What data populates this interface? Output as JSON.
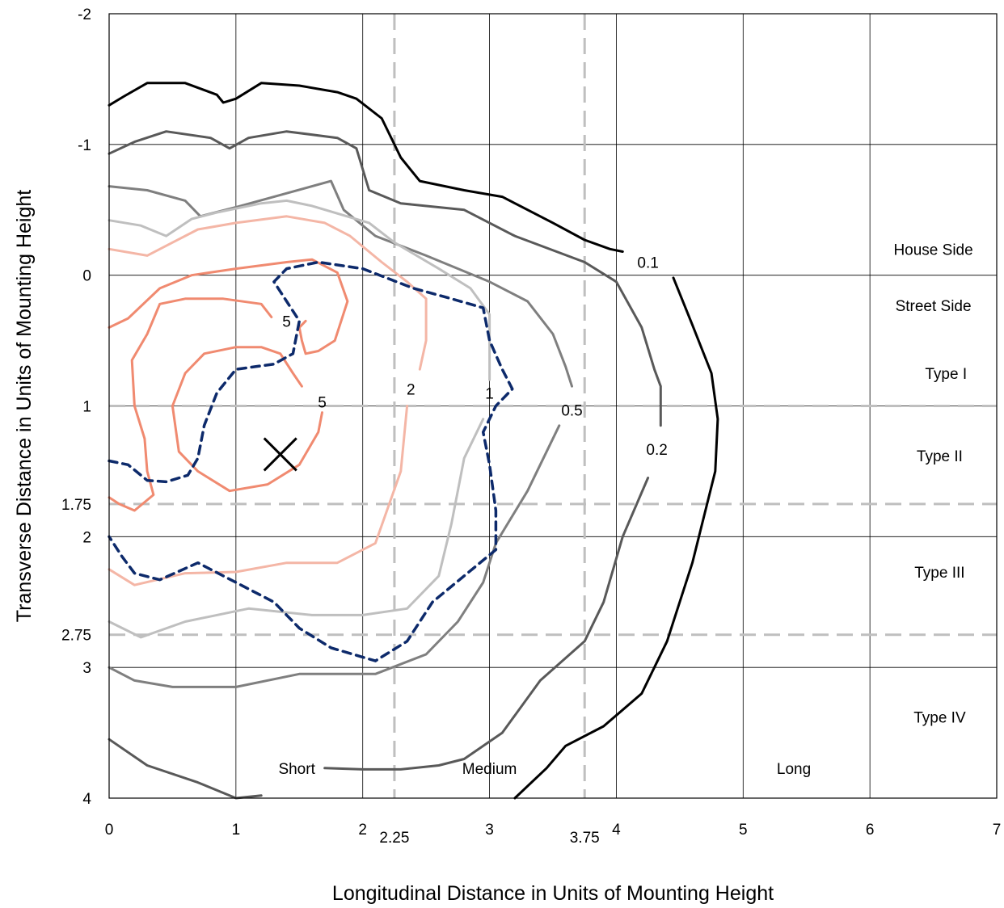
{
  "chart_data": {
    "type": "contour",
    "title": "",
    "xlabel": "Longitudinal Distance in Units of Mounting Height",
    "ylabel": "Transverse Distance in Units of Mounting Height",
    "xlim": [
      0,
      7
    ],
    "ylim": [
      -2,
      4
    ],
    "y_inverted": true,
    "x_ticks": [
      "0",
      "1",
      "2",
      "3",
      "4",
      "5",
      "6",
      "7"
    ],
    "x_extra_ticks": [
      {
        "value": 2.25,
        "label": "2.25"
      },
      {
        "value": 3.75,
        "label": "3.75"
      }
    ],
    "y_ticks": [
      {
        "value": -2,
        "label": "-2"
      },
      {
        "value": -1,
        "label": "-1"
      },
      {
        "value": 0,
        "label": "0"
      },
      {
        "value": 1,
        "label": "1"
      },
      {
        "value": 1.75,
        "label": "1.75"
      },
      {
        "value": 2,
        "label": "2"
      },
      {
        "value": 2.75,
        "label": "2.75"
      },
      {
        "value": 3,
        "label": "3"
      },
      {
        "value": 4,
        "label": "4"
      }
    ],
    "grid": true,
    "dashed_reference_lines": {
      "x": [
        2.25,
        3.75
      ],
      "y": [
        1,
        1.75,
        2.75
      ]
    },
    "region_labels": [
      {
        "text": "House Side",
        "x": 6.5,
        "y": -0.2
      },
      {
        "text": "Street Side",
        "x": 6.5,
        "y": 0.23
      },
      {
        "text": "Type I",
        "x": 6.6,
        "y": 0.75
      },
      {
        "text": "Type II",
        "x": 6.55,
        "y": 1.38
      },
      {
        "text": "Type III",
        "x": 6.55,
        "y": 2.27
      },
      {
        "text": "Type IV",
        "x": 6.55,
        "y": 3.38
      },
      {
        "text": "Short",
        "x": 1.48,
        "y": 3.77
      },
      {
        "text": "Medium",
        "x": 3.0,
        "y": 3.77
      },
      {
        "text": "Long",
        "x": 5.4,
        "y": 3.77
      }
    ],
    "max_candela_marker": {
      "symbol": "×",
      "x": 1.35,
      "y": 1.37
    },
    "series": [
      {
        "name": "0.1",
        "color": "#000000",
        "dash": false,
        "label": {
          "text": "0.1",
          "x": 4.25,
          "y": -0.1
        },
        "points": [
          [
            0,
            -1.3
          ],
          [
            0.12,
            -1.37
          ],
          [
            0.3,
            -1.47
          ],
          [
            0.6,
            -1.47
          ],
          [
            0.85,
            -1.38
          ],
          [
            0.9,
            -1.32
          ],
          [
            1.0,
            -1.35
          ],
          [
            1.2,
            -1.47
          ],
          [
            1.5,
            -1.45
          ],
          [
            1.8,
            -1.4
          ],
          [
            1.95,
            -1.35
          ],
          [
            2.15,
            -1.2
          ],
          [
            2.3,
            -0.9
          ],
          [
            2.45,
            -0.72
          ],
          [
            2.8,
            -0.65
          ],
          [
            3.1,
            -0.6
          ],
          [
            3.5,
            -0.4
          ],
          [
            3.75,
            -0.27
          ],
          [
            3.95,
            -0.2
          ],
          [
            4.05,
            -0.18
          ]
        ],
        "points2": [
          [
            4.45,
            0.02
          ],
          [
            4.6,
            0.38
          ],
          [
            4.75,
            0.75
          ],
          [
            4.8,
            1.1
          ],
          [
            4.78,
            1.5
          ],
          [
            4.6,
            2.2
          ],
          [
            4.4,
            2.8
          ],
          [
            4.2,
            3.2
          ],
          [
            3.9,
            3.45
          ],
          [
            3.6,
            3.6
          ],
          [
            3.45,
            3.77
          ],
          [
            3.2,
            4.0
          ]
        ]
      },
      {
        "name": "0.2",
        "color": "#595959",
        "dash": false,
        "label": {
          "text": "0.2",
          "x": 4.32,
          "y": 1.33
        },
        "points": [
          [
            0,
            -0.93
          ],
          [
            0.2,
            -1.02
          ],
          [
            0.45,
            -1.1
          ],
          [
            0.8,
            -1.05
          ],
          [
            0.95,
            -0.97
          ],
          [
            1.1,
            -1.05
          ],
          [
            1.4,
            -1.1
          ],
          [
            1.8,
            -1.05
          ],
          [
            1.95,
            -0.97
          ],
          [
            2.05,
            -0.65
          ],
          [
            2.3,
            -0.55
          ],
          [
            2.8,
            -0.5
          ],
          [
            3.2,
            -0.3
          ],
          [
            3.75,
            -0.1
          ],
          [
            4.0,
            0.05
          ],
          [
            4.2,
            0.4
          ],
          [
            4.3,
            0.72
          ],
          [
            4.35,
            0.85
          ],
          [
            4.35,
            1.15
          ]
        ],
        "points2": [
          [
            4.25,
            1.55
          ],
          [
            4.05,
            2.0
          ],
          [
            3.9,
            2.5
          ],
          [
            3.75,
            2.8
          ],
          [
            3.4,
            3.1
          ],
          [
            3.1,
            3.5
          ],
          [
            2.8,
            3.7
          ],
          [
            2.6,
            3.75
          ],
          [
            2.3,
            3.78
          ],
          [
            2.0,
            3.78
          ],
          [
            1.7,
            3.77
          ]
        ],
        "points3": [
          [
            0,
            3.55
          ],
          [
            0.3,
            3.75
          ],
          [
            0.7,
            3.88
          ],
          [
            1.0,
            4.0
          ],
          [
            1.2,
            3.98
          ]
        ]
      },
      {
        "name": "0.5",
        "color": "#7f7f7f",
        "dash": false,
        "label": {
          "text": "0.5",
          "x": 3.65,
          "y": 1.03
        },
        "points": [
          [
            0,
            -0.68
          ],
          [
            0.3,
            -0.65
          ],
          [
            0.6,
            -0.57
          ],
          [
            0.72,
            -0.45
          ],
          [
            1.0,
            -0.52
          ],
          [
            1.3,
            -0.6
          ],
          [
            1.75,
            -0.72
          ],
          [
            1.85,
            -0.5
          ],
          [
            2.1,
            -0.3
          ],
          [
            2.5,
            -0.15
          ],
          [
            3.0,
            0.05
          ],
          [
            3.3,
            0.2
          ],
          [
            3.5,
            0.45
          ],
          [
            3.6,
            0.7
          ],
          [
            3.65,
            0.85
          ]
        ],
        "points2": [
          [
            3.55,
            1.15
          ],
          [
            3.3,
            1.65
          ],
          [
            3.05,
            2.05
          ],
          [
            2.95,
            2.35
          ],
          [
            2.75,
            2.65
          ],
          [
            2.5,
            2.9
          ],
          [
            2.1,
            3.05
          ],
          [
            1.5,
            3.05
          ],
          [
            1.0,
            3.15
          ],
          [
            0.5,
            3.15
          ],
          [
            0.2,
            3.1
          ],
          [
            0,
            3.0
          ]
        ]
      },
      {
        "name": "1",
        "color": "#bfbfbf",
        "dash": false,
        "label": {
          "text": "1",
          "x": 3.0,
          "y": 0.9
        },
        "points": [
          [
            0,
            -0.42
          ],
          [
            0.25,
            -0.38
          ],
          [
            0.45,
            -0.3
          ],
          [
            0.65,
            -0.43
          ],
          [
            0.85,
            -0.48
          ],
          [
            1.2,
            -0.55
          ],
          [
            1.4,
            -0.57
          ],
          [
            1.6,
            -0.53
          ],
          [
            2.05,
            -0.4
          ],
          [
            2.25,
            -0.25
          ],
          [
            2.6,
            -0.05
          ],
          [
            2.85,
            0.1
          ],
          [
            3.0,
            0.3
          ],
          [
            3.0,
            0.6
          ],
          [
            3.0,
            0.8
          ]
        ],
        "points2": [
          [
            2.95,
            1.1
          ],
          [
            2.8,
            1.4
          ],
          [
            2.7,
            1.9
          ],
          [
            2.6,
            2.3
          ],
          [
            2.35,
            2.55
          ],
          [
            2.0,
            2.6
          ],
          [
            1.6,
            2.6
          ],
          [
            1.1,
            2.55
          ],
          [
            0.6,
            2.65
          ],
          [
            0.25,
            2.77
          ],
          [
            0,
            2.65
          ]
        ]
      },
      {
        "name": "2",
        "color": "#f4b6a6",
        "dash": false,
        "label": {
          "text": "2",
          "x": 2.38,
          "y": 0.87
        },
        "points": [
          [
            0,
            -0.2
          ],
          [
            0.3,
            -0.15
          ],
          [
            0.5,
            -0.25
          ],
          [
            0.7,
            -0.35
          ],
          [
            1.0,
            -0.4
          ],
          [
            1.4,
            -0.45
          ],
          [
            1.7,
            -0.4
          ],
          [
            1.9,
            -0.3
          ],
          [
            2.15,
            -0.1
          ],
          [
            2.35,
            0.05
          ],
          [
            2.5,
            0.18
          ],
          [
            2.5,
            0.5
          ],
          [
            2.45,
            0.72
          ]
        ],
        "points2": [
          [
            2.35,
            1.0
          ],
          [
            2.3,
            1.5
          ],
          [
            2.1,
            2.05
          ],
          [
            1.8,
            2.2
          ],
          [
            1.4,
            2.2
          ],
          [
            1.0,
            2.27
          ],
          [
            0.6,
            2.28
          ],
          [
            0.2,
            2.37
          ],
          [
            0,
            2.25
          ]
        ]
      },
      {
        "name": "5",
        "color": "#f08a70",
        "dash": false,
        "label": {
          "text": "5",
          "x": 1.4,
          "y": 0.35
        },
        "points": [
          [
            0,
            0.4
          ],
          [
            0.15,
            0.33
          ],
          [
            0.4,
            0.1
          ],
          [
            0.65,
            0.0
          ],
          [
            1.0,
            -0.05
          ],
          [
            1.4,
            -0.1
          ],
          [
            1.6,
            -0.12
          ],
          [
            1.8,
            -0.02
          ],
          [
            1.88,
            0.2
          ],
          [
            1.78,
            0.5
          ],
          [
            1.65,
            0.58
          ],
          [
            1.55,
            0.6
          ],
          [
            1.52,
            0.5
          ],
          [
            1.5,
            0.4
          ],
          [
            1.55,
            0.35
          ]
        ],
        "points2": [
          [
            1.28,
            0.32
          ],
          [
            1.2,
            0.22
          ],
          [
            0.9,
            0.18
          ],
          [
            0.6,
            0.18
          ],
          [
            0.4,
            0.22
          ],
          [
            0.3,
            0.45
          ],
          [
            0.18,
            0.65
          ],
          [
            0.2,
            1.0
          ],
          [
            0.28,
            1.25
          ],
          [
            0.3,
            1.5
          ],
          [
            0.35,
            1.68
          ],
          [
            0.2,
            1.8
          ],
          [
            0.08,
            1.75
          ],
          [
            0,
            1.7
          ]
        ]
      },
      {
        "name": "5 (inner)",
        "color": "#f08a70",
        "dash": false,
        "label": {
          "text": "5",
          "x": 1.68,
          "y": 0.97
        },
        "points": [
          [
            1.52,
            0.85
          ],
          [
            1.45,
            0.75
          ],
          [
            1.35,
            0.6
          ],
          [
            1.2,
            0.55
          ],
          [
            1.0,
            0.55
          ],
          [
            0.75,
            0.6
          ],
          [
            0.6,
            0.75
          ],
          [
            0.5,
            1.0
          ],
          [
            0.55,
            1.35
          ],
          [
            0.7,
            1.5
          ],
          [
            0.95,
            1.65
          ],
          [
            1.25,
            1.6
          ],
          [
            1.5,
            1.45
          ],
          [
            1.65,
            1.2
          ],
          [
            1.68,
            1.05
          ]
        ]
      },
      {
        "name": "threshold",
        "color": "#0d2a6b",
        "dash": true,
        "label": null,
        "points": [
          [
            0,
            1.42
          ],
          [
            0.15,
            1.45
          ],
          [
            0.3,
            1.57
          ],
          [
            0.45,
            1.58
          ],
          [
            0.62,
            1.53
          ],
          [
            0.7,
            1.4
          ],
          [
            0.75,
            1.15
          ],
          [
            0.85,
            0.9
          ],
          [
            1.0,
            0.72
          ],
          [
            1.3,
            0.68
          ],
          [
            1.45,
            0.6
          ],
          [
            1.5,
            0.35
          ],
          [
            1.4,
            0.2
          ],
          [
            1.3,
            0.05
          ],
          [
            1.4,
            -0.05
          ],
          [
            1.65,
            -0.1
          ],
          [
            2.0,
            -0.05
          ],
          [
            2.4,
            0.1
          ],
          [
            2.7,
            0.18
          ],
          [
            2.95,
            0.25
          ],
          [
            3.0,
            0.5
          ],
          [
            3.1,
            0.72
          ],
          [
            3.18,
            0.87
          ],
          [
            3.05,
            1.0
          ],
          [
            2.95,
            1.2
          ],
          [
            3.0,
            1.45
          ],
          [
            3.05,
            1.8
          ],
          [
            3.05,
            2.1
          ],
          [
            2.8,
            2.3
          ],
          [
            2.55,
            2.5
          ],
          [
            2.35,
            2.8
          ],
          [
            2.1,
            2.95
          ],
          [
            1.75,
            2.85
          ],
          [
            1.5,
            2.7
          ],
          [
            1.3,
            2.5
          ],
          [
            1.0,
            2.35
          ],
          [
            0.7,
            2.2
          ],
          [
            0.4,
            2.33
          ],
          [
            0.2,
            2.28
          ],
          [
            0.1,
            2.15
          ],
          [
            0,
            2.0
          ]
        ]
      }
    ]
  }
}
